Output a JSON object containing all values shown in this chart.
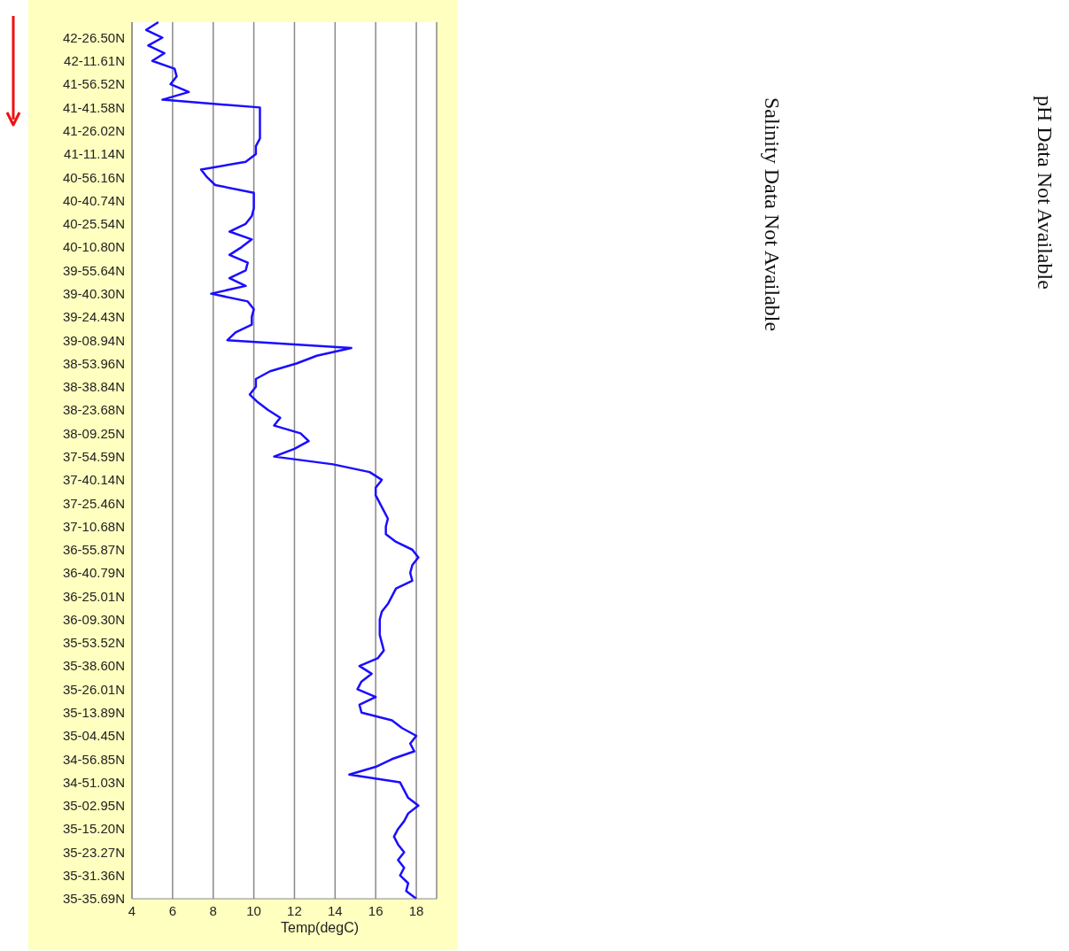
{
  "chart_data": {
    "type": "line",
    "orientation": "horizontal",
    "xlabel": "Temp(degC)",
    "categories": [
      null,
      null,
      "42-26.50N",
      null,
      null,
      "42-11.61N",
      null,
      null,
      "41-56.52N",
      null,
      null,
      "41-41.58N",
      null,
      null,
      "41-26.02N",
      null,
      null,
      "41-11.14N",
      null,
      null,
      "40-56.16N",
      null,
      null,
      "40-40.74N",
      null,
      null,
      "40-25.54N",
      null,
      null,
      "40-10.80N",
      null,
      null,
      "39-55.64N",
      null,
      null,
      "39-40.30N",
      null,
      null,
      "39-24.43N",
      null,
      null,
      "39-08.94N",
      null,
      null,
      "38-53.96N",
      null,
      null,
      "38-38.84N",
      null,
      null,
      "38-23.68N",
      null,
      null,
      "38-09.25N",
      null,
      null,
      "37-54.59N",
      null,
      null,
      "37-40.14N",
      null,
      null,
      "37-25.46N",
      null,
      null,
      "37-10.68N",
      null,
      null,
      "36-55.87N",
      null,
      null,
      "36-40.79N",
      null,
      null,
      "36-25.01N",
      null,
      null,
      "36-09.30N",
      null,
      null,
      "35-53.52N",
      null,
      null,
      "35-38.60N",
      null,
      null,
      "35-26.01N",
      null,
      null,
      "35-13.89N",
      null,
      null,
      "35-04.45N",
      null,
      null,
      "34-56.85N",
      null,
      null,
      "34-51.03N",
      null,
      null,
      "35-02.95N",
      null,
      null,
      "35-15.20N",
      null,
      null,
      "35-23.27N",
      null,
      null,
      "35-31.36N",
      null,
      null,
      "35-35.69N"
    ],
    "values": [
      5.3,
      4.7,
      5.5,
      4.8,
      5.6,
      5.0,
      6.1,
      6.2,
      5.9,
      6.8,
      5.5,
      10.3,
      10.3,
      10.3,
      10.3,
      10.3,
      10.1,
      10.1,
      9.6,
      7.4,
      7.7,
      8.1,
      10.0,
      10.0,
      10.0,
      9.9,
      9.6,
      8.8,
      9.9,
      9.4,
      8.8,
      9.7,
      9.6,
      8.8,
      9.6,
      7.9,
      9.7,
      10.0,
      9.9,
      9.9,
      9.1,
      8.7,
      14.8,
      13.1,
      12.1,
      10.8,
      10.1,
      10.1,
      9.8,
      10.2,
      10.7,
      11.3,
      11.0,
      12.3,
      12.7,
      12.0,
      11.0,
      13.9,
      15.7,
      16.3,
      16.0,
      16.0,
      16.2,
      16.4,
      16.6,
      16.5,
      16.5,
      17.0,
      17.8,
      18.1,
      17.8,
      17.7,
      17.8,
      17.0,
      16.8,
      16.6,
      16.3,
      16.2,
      16.2,
      16.2,
      16.3,
      16.4,
      16.1,
      15.2,
      15.8,
      15.3,
      15.1,
      16.0,
      15.2,
      15.3,
      16.8,
      17.3,
      18.0,
      17.7,
      17.9,
      16.8,
      16.0,
      14.7,
      17.2,
      17.4,
      17.6,
      18.1,
      17.6,
      17.4,
      17.1,
      16.9,
      17.1,
      17.4,
      17.1,
      17.4,
      17.2,
      17.6,
      17.5,
      18.0
    ],
    "color": "#1a0dff",
    "xlim": [
      4,
      19
    ],
    "xticks": [
      4,
      6,
      8,
      10,
      12,
      14,
      16,
      18
    ],
    "grid": "x",
    "annotations": [
      "Salinity Data Not Available",
      "pH Data Not Available"
    ]
  }
}
